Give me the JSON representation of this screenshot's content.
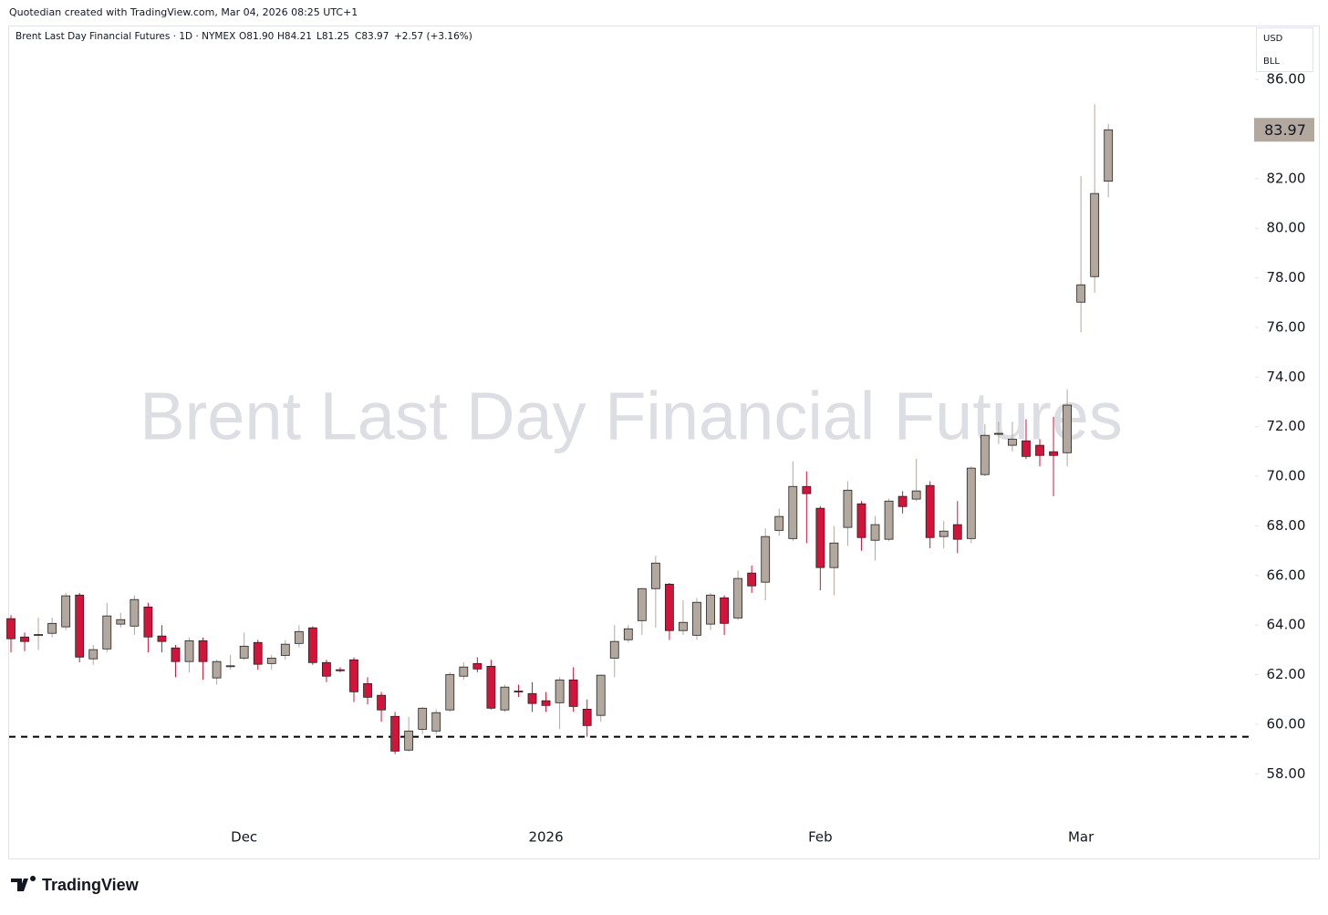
{
  "header": "Quotedian created with TradingView.com, Mar 04, 2026 08:25 UTC+1",
  "footer": "TradingView",
  "chart_data": {
    "type": "candlestick",
    "title": "Brent Last Day Financial Futures",
    "legend": {
      "symbol": "Brent Last Day Financial Futures · 1D · NYMEX",
      "open": "O81.90",
      "high": "H84.21",
      "low": "L81.25",
      "close": "C83.97",
      "change": "+2.57 (+3.16%)"
    },
    "currency": "USD",
    "unit": "BLL",
    "categories": [
      null,
      null,
      null,
      null,
      null,
      null,
      null,
      null,
      null,
      null,
      null,
      null,
      null,
      null,
      null,
      null,
      null,
      "Dec",
      null,
      null,
      null,
      null,
      null,
      null,
      null,
      null,
      null,
      null,
      null,
      null,
      null,
      null,
      null,
      null,
      null,
      null,
      null,
      null,
      null,
      "2026",
      null,
      null,
      null,
      null,
      null,
      null,
      null,
      null,
      null,
      null,
      null,
      null,
      null,
      null,
      null,
      null,
      null,
      null,
      null,
      "Feb",
      null,
      null,
      null,
      null,
      null,
      null,
      null,
      null,
      null,
      null,
      null,
      null,
      null,
      null,
      null,
      null,
      null,
      null,
      "Mar",
      null,
      null
    ],
    "open": [
      64.26,
      63.52,
      63.6,
      63.67,
      63.93,
      65.21,
      62.64,
      63.04,
      64.04,
      63.96,
      64.73,
      63.56,
      63.08,
      62.53,
      63.37,
      61.87,
      62.34,
      62.67,
      63.3,
      62.45,
      62.78,
      63.26,
      63.89,
      62.49,
      62.2,
      62.6,
      61.64,
      61.17,
      60.32,
      58.96,
      59.8,
      59.73,
      60.58,
      61.94,
      62.45,
      62.34,
      60.58,
      61.34,
      61.24,
      60.95,
      60.87,
      61.79,
      60.61,
      60.36,
      62.67,
      63.41,
      64.18,
      65.47,
      65.65,
      63.78,
      63.59,
      64.04,
      65.1,
      64.29,
      66.1,
      65.73,
      67.82,
      67.49,
      69.59,
      68.71,
      66.32,
      67.94,
      68.89,
      67.42,
      67.46,
      69.19,
      69.08,
      69.63,
      67.57,
      68.05,
      67.49,
      70.07,
      71.7,
      71.25,
      71.43,
      71.25,
      70.99,
      70.95,
      77.02,
      78.05,
      81.9
    ],
    "high": [
      64.4,
      63.7,
      64.3,
      64.3,
      65.3,
      65.3,
      63.2,
      64.9,
      64.5,
      65.2,
      64.9,
      64.0,
      63.2,
      63.5,
      63.5,
      62.6,
      62.8,
      63.7,
      63.4,
      62.8,
      63.4,
      64.0,
      63.95,
      62.6,
      62.3,
      62.7,
      61.9,
      61.3,
      60.5,
      60.3,
      60.7,
      60.6,
      62.1,
      62.5,
      62.7,
      62.6,
      61.6,
      61.6,
      61.7,
      61.3,
      61.9,
      62.3,
      61.0,
      62.0,
      64.0,
      64.0,
      65.5,
      66.8,
      65.7,
      65.0,
      65.1,
      65.3,
      65.2,
      66.2,
      66.4,
      67.9,
      68.7,
      70.6,
      70.2,
      68.8,
      68.0,
      69.8,
      69.0,
      68.4,
      69.1,
      69.4,
      70.7,
      69.8,
      68.2,
      69.0,
      70.4,
      72.1,
      72.2,
      72.2,
      72.3,
      71.5,
      72.4,
      73.5,
      82.1,
      85.0,
      84.21
    ],
    "low": [
      62.9,
      62.95,
      63.0,
      63.5,
      63.8,
      62.5,
      62.4,
      62.9,
      63.9,
      63.6,
      62.9,
      62.9,
      61.9,
      62.1,
      61.8,
      61.6,
      62.2,
      62.6,
      62.2,
      62.2,
      62.6,
      63.1,
      62.4,
      61.7,
      62.1,
      60.9,
      60.8,
      60.1,
      58.8,
      58.9,
      59.6,
      59.6,
      60.5,
      61.8,
      62.1,
      60.6,
      60.5,
      61.1,
      60.5,
      60.5,
      59.8,
      60.5,
      59.5,
      60.1,
      61.9,
      63.3,
      63.6,
      63.9,
      63.4,
      63.6,
      63.4,
      63.8,
      63.6,
      64.2,
      65.3,
      65.0,
      67.6,
      67.4,
      67.3,
      65.4,
      65.2,
      67.2,
      67.0,
      66.6,
      67.4,
      68.5,
      69.0,
      67.1,
      67.1,
      66.9,
      67.3,
      70.0,
      71.3,
      71.0,
      70.7,
      70.4,
      69.2,
      70.4,
      75.8,
      77.4,
      81.25
    ],
    "close": [
      63.45,
      63.34,
      63.62,
      64.07,
      65.18,
      62.71,
      63.01,
      64.37,
      64.22,
      65.03,
      63.52,
      63.34,
      62.53,
      63.37,
      62.53,
      62.53,
      62.36,
      63.15,
      62.42,
      62.67,
      63.23,
      63.74,
      62.49,
      61.94,
      62.16,
      61.31,
      61.09,
      60.58,
      58.92,
      59.73,
      60.65,
      60.47,
      62.01,
      62.31,
      62.23,
      60.65,
      61.5,
      61.31,
      60.84,
      60.76,
      61.79,
      60.72,
      59.95,
      61.98,
      63.34,
      63.85,
      65.47,
      66.5,
      63.78,
      64.11,
      64.92,
      65.21,
      64.07,
      65.88,
      65.58,
      67.57,
      68.38,
      69.59,
      69.3,
      66.32,
      67.31,
      69.44,
      67.53,
      68.05,
      69.0,
      68.78,
      69.41,
      67.53,
      67.79,
      67.46,
      70.33,
      71.65,
      71.73,
      71.5,
      70.8,
      70.84,
      70.84,
      72.87,
      77.72,
      81.4,
      83.97
    ],
    "up_color": "#b2a89e",
    "down_color": "#d2143a",
    "hline": 59.5,
    "ylim": [
      56.1,
      88.1
    ],
    "yticks": [
      {
        "value": 58,
        "label": "58.00"
      },
      {
        "value": 60,
        "label": "60.00"
      },
      {
        "value": 62,
        "label": "62.00"
      },
      {
        "value": 64,
        "label": "64.00"
      },
      {
        "value": 66,
        "label": "66.00"
      },
      {
        "value": 68,
        "label": "68.00"
      },
      {
        "value": 70,
        "label": "70.00"
      },
      {
        "value": 72,
        "label": "72.00"
      },
      {
        "value": 74,
        "label": "74.00"
      },
      {
        "value": 76,
        "label": "76.00"
      },
      {
        "value": 78,
        "label": "78.00"
      },
      {
        "value": 80,
        "label": "80.00"
      },
      {
        "value": 82,
        "label": "82.00"
      },
      {
        "value": 84,
        "label": "84.00"
      },
      {
        "value": 86,
        "label": "86.00"
      }
    ]
  }
}
